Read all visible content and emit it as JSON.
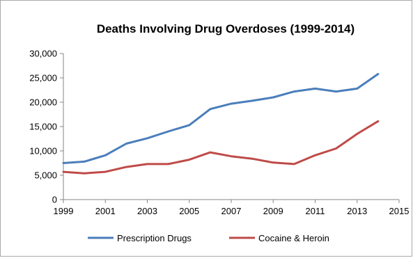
{
  "chart_data": {
    "type": "line",
    "title": "Deaths Involving Drug Overdoses (1999-2014)",
    "xlabel": "",
    "ylabel": "",
    "xlim": [
      1999,
      2015
    ],
    "ylim": [
      0,
      30000
    ],
    "x_ticks": [
      1999,
      2001,
      2003,
      2005,
      2007,
      2009,
      2011,
      2013,
      2015
    ],
    "y_ticks": [
      0,
      5000,
      10000,
      15000,
      20000,
      25000,
      30000
    ],
    "y_tick_labels": [
      "0",
      "5,000",
      "10,000",
      "15,000",
      "20,000",
      "25,000",
      "30,000"
    ],
    "grid": false,
    "legend_position": "bottom",
    "x": [
      1999,
      2000,
      2001,
      2002,
      2003,
      2004,
      2005,
      2006,
      2007,
      2008,
      2009,
      2010,
      2011,
      2012,
      2013,
      2014
    ],
    "series": [
      {
        "name": "Prescription Drugs",
        "color": "#4a7ebb",
        "values": [
          7500,
          7800,
          9100,
          11500,
          12600,
          14000,
          15300,
          18600,
          19700,
          20300,
          21000,
          22200,
          22800,
          22200,
          22800,
          25800
        ]
      },
      {
        "name": "Cocaine & Heroin",
        "color": "#be4b48",
        "values": [
          5700,
          5400,
          5700,
          6700,
          7300,
          7300,
          8200,
          9700,
          8900,
          8400,
          7600,
          7300,
          9100,
          10500,
          13500,
          16100
        ]
      }
    ]
  }
}
